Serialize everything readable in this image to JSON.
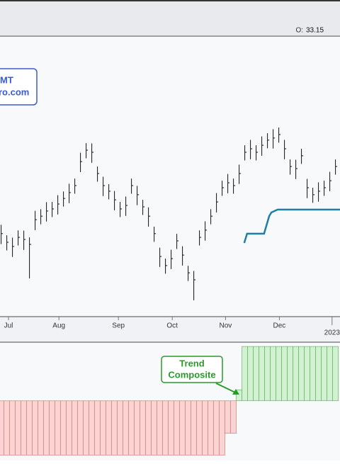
{
  "header": {
    "open_label": "O:",
    "open_value": 33.15
  },
  "chart_data": [
    {
      "type": "ohlc",
      "color": "#111111",
      "xlim": [
        -0.2,
        59.8
      ],
      "ylim": [
        28,
        40
      ],
      "xticks": [
        {
          "value": 1.3,
          "label": "Jul"
        },
        {
          "value": 10.2,
          "label": "Aug"
        },
        {
          "value": 20.7,
          "label": "Sep"
        },
        {
          "value": 30.2,
          "label": "Oct"
        },
        {
          "value": 39.6,
          "label": "Nov"
        },
        {
          "value": 49.1,
          "label": "Dec"
        },
        {
          "value": 58.4,
          "label": "2023"
        }
      ],
      "high": [
        31.94,
        31.49,
        31.39,
        31.7,
        31.69,
        31.4,
        32.54,
        32.61,
        32.91,
        32.92,
        33.21,
        33.37,
        33.7,
        33.92,
        35.03,
        35.44,
        35.43,
        34.44,
        34.0,
        33.68,
        33.39,
        32.92,
        33.15,
        33.92,
        33.61,
        33.01,
        32.69,
        31.86,
        30.96,
        30.49,
        30.87,
        31.55,
        31.02,
        30.18,
        29.96,
        31.7,
        32.09,
        32.61,
        33.3,
        33.83,
        34.12,
        33.92,
        34.52,
        35.35,
        35.58,
        35.35,
        35.73,
        35.87,
        36.04,
        36.11,
        35.58,
        34.74,
        34.73,
        35.2,
        33.91,
        33.53,
        33.76,
        33.83,
        34.21,
        34.74
      ],
      "low": [
        31.11,
        30.84,
        30.56,
        31.05,
        30.86,
        29.64,
        31.71,
        31.96,
        32.08,
        32.27,
        32.38,
        32.72,
        32.87,
        33.27,
        34.2,
        34.79,
        34.6,
        33.79,
        33.17,
        33.03,
        32.56,
        32.27,
        32.32,
        33.27,
        32.78,
        32.36,
        31.86,
        31.21,
        30.13,
        29.84,
        30.04,
        30.9,
        30.19,
        29.53,
        28.7,
        31.05,
        31.26,
        31.96,
        32.47,
        33.18,
        33.29,
        33.27,
        33.69,
        34.7,
        34.75,
        34.7,
        34.9,
        35.22,
        35.21,
        35.46,
        34.75,
        34.09,
        33.9,
        34.55,
        33.08,
        32.88,
        32.93,
        33.18,
        33.38,
        34.09
      ],
      "close": [
        31.56,
        31.19,
        31.01,
        31.4,
        31.31,
        31.1,
        32.16,
        32.31,
        32.53,
        32.62,
        32.83,
        33.07,
        33.32,
        33.62,
        34.65,
        35.14,
        35.05,
        34.14,
        33.62,
        33.38,
        33.01,
        32.62,
        32.77,
        33.62,
        33.23,
        32.71,
        32.31,
        31.56,
        30.58,
        30.19,
        30.49,
        31.25,
        30.64,
        29.88,
        29.58,
        31.4,
        31.71,
        32.31,
        32.92,
        33.53,
        33.74,
        33.62,
        34.14,
        35.05,
        35.2,
        35.05,
        35.35,
        35.57,
        35.66,
        35.81,
        35.2,
        34.44,
        34.35,
        34.9,
        33.53,
        33.23,
        33.38,
        33.53,
        33.83,
        34.44
      ],
      "trend_line": {
        "color": "#1f7ea1",
        "x": [
          42.9,
          43.4,
          46.4,
          47.3,
          47.7,
          48.8,
          59.8
        ],
        "values": [
          31.16,
          31.56,
          31.56,
          32.31,
          32.47,
          32.59,
          32.59
        ]
      },
      "watermark": [
        "MT",
        "ro.com"
      ]
    },
    {
      "type": "bar",
      "xlim": [
        -0.2,
        59.8
      ],
      "ylim": [
        -5.5,
        5.4
      ],
      "positive_color": "#5dbb5d",
      "negative_color": "#e07a7a",
      "values": [
        -5,
        -5,
        -5,
        -5,
        -5,
        -5,
        -5,
        -5,
        -5,
        -5,
        -5,
        -5,
        -5,
        -5,
        -5,
        -5,
        -5,
        -5,
        -5,
        -5,
        -5,
        -5,
        -5,
        -5,
        -5,
        -5,
        -5,
        -5,
        -5,
        -5,
        -5,
        -5,
        -5,
        -5,
        -5,
        -5,
        -5,
        -5,
        -5,
        -5,
        -3,
        -3,
        1,
        5,
        5,
        5,
        5,
        5,
        5,
        5,
        5,
        5,
        5,
        5,
        5,
        5,
        5,
        5,
        5,
        5
      ],
      "annotation": [
        "Trend",
        "Composite"
      ]
    }
  ]
}
